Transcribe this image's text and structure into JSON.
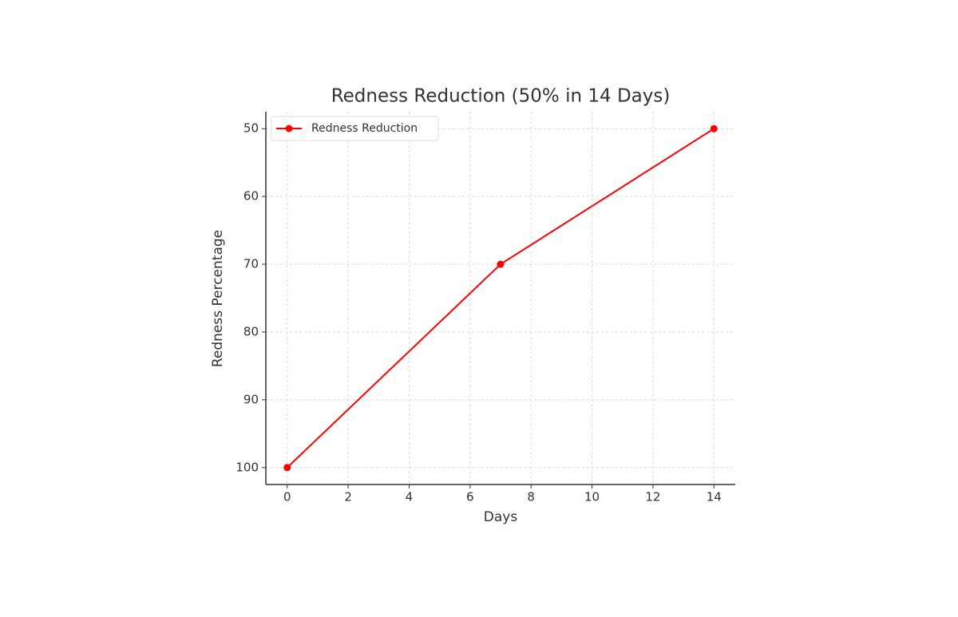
{
  "chart_data": {
    "type": "line",
    "title": "Redness Reduction (50% in 14 Days)",
    "x_label": "Days",
    "y_label": "Redness Percentage",
    "x": [
      0,
      7,
      14
    ],
    "series": [
      {
        "name": "Redness Reduction",
        "color": "#ff0000",
        "values": [
          100,
          70,
          50
        ]
      }
    ],
    "xlim": [
      -0.7,
      14.7
    ],
    "xticks": [
      0,
      2,
      4,
      6,
      8,
      10,
      12,
      14
    ],
    "ylim": [
      102.5,
      47.5
    ],
    "yticks": [
      50,
      60,
      70,
      80,
      90,
      100
    ],
    "grid": true,
    "legend": "upper left"
  }
}
